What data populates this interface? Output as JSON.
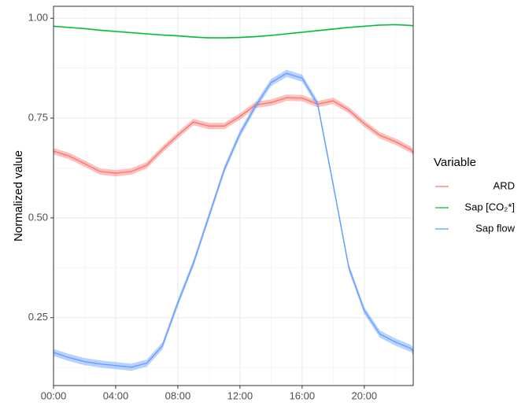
{
  "chart_data": {
    "type": "line",
    "y_label": "Normalized value",
    "legend_title": "Variable",
    "legend_position": "right",
    "grid": true,
    "x": [
      0,
      1,
      2,
      3,
      4,
      5,
      6,
      7,
      8,
      9,
      10,
      11,
      12,
      13,
      14,
      15,
      16,
      17,
      18,
      19,
      20,
      21,
      22,
      23,
      23.15
    ],
    "xlim": [
      0,
      23.15
    ],
    "xticks": [
      {
        "value": 0,
        "label": "00:00"
      },
      {
        "value": 4,
        "label": "04:00"
      },
      {
        "value": 8,
        "label": "08:00"
      },
      {
        "value": 12,
        "label": "12:00"
      },
      {
        "value": 16,
        "label": "16:00"
      },
      {
        "value": 20,
        "label": "20:00"
      }
    ],
    "xminor": [
      2,
      6,
      10,
      14,
      18,
      22
    ],
    "ylim": [
      0.08,
      1.03
    ],
    "yticks": [
      0.25,
      {
        "value": 0.5,
        "label": "0.50"
      },
      0.75,
      {
        "value": 1,
        "label": "1.00"
      }
    ],
    "yminor": [
      0.125,
      0.375,
      0.625,
      0.875
    ],
    "series": [
      {
        "name": "ARD",
        "color": "#F8766D",
        "ci": 0.008,
        "values": [
          0.667,
          0.655,
          0.636,
          0.616,
          0.612,
          0.616,
          0.632,
          0.671,
          0.707,
          0.74,
          0.73,
          0.73,
          0.754,
          0.783,
          0.789,
          0.801,
          0.8,
          0.785,
          0.793,
          0.77,
          0.736,
          0.707,
          0.691,
          0.671,
          0.663
        ]
      },
      {
        "name": "Sap [CO₂*]",
        "color": "#00BA38",
        "ci": 0.002,
        "values": [
          0.98,
          0.977,
          0.974,
          0.97,
          0.967,
          0.964,
          0.961,
          0.958,
          0.956,
          0.953,
          0.951,
          0.951,
          0.952,
          0.954,
          0.957,
          0.961,
          0.965,
          0.969,
          0.973,
          0.977,
          0.98,
          0.983,
          0.984,
          0.982,
          0.981
        ]
      },
      {
        "name": "Sap flow",
        "color": "#619CFF",
        "ci": 0.009,
        "values": [
          0.163,
          0.15,
          0.14,
          0.134,
          0.13,
          0.126,
          0.136,
          0.179,
          0.287,
          0.386,
          0.504,
          0.622,
          0.711,
          0.78,
          0.839,
          0.862,
          0.85,
          0.785,
          0.583,
          0.376,
          0.268,
          0.209,
          0.189,
          0.173,
          0.165
        ]
      }
    ]
  }
}
